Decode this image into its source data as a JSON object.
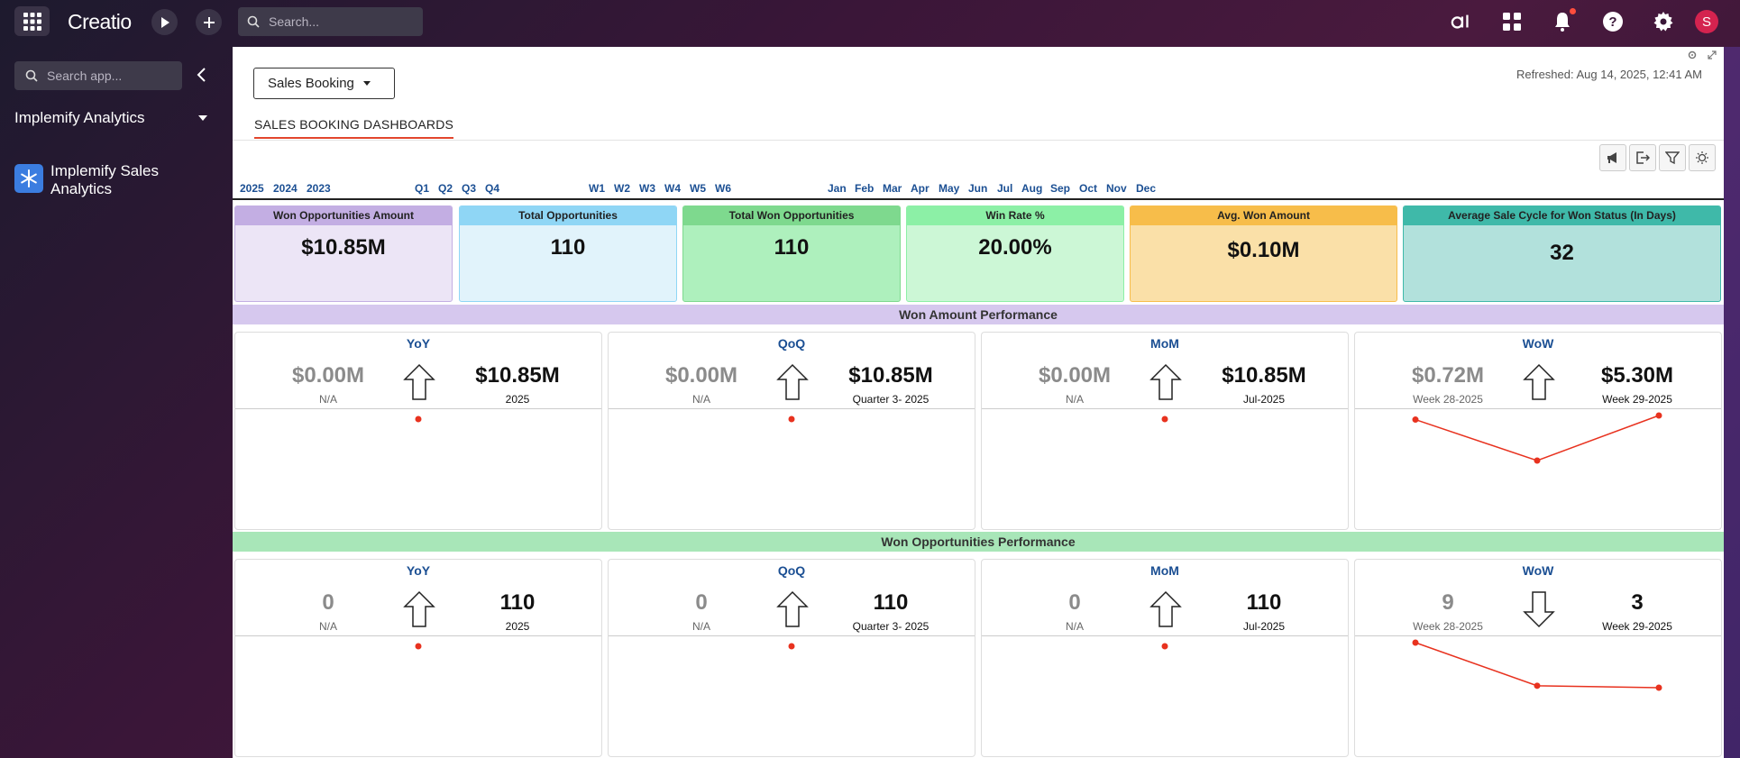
{
  "topbar": {
    "logo": "Creatio",
    "search_placeholder": "Search...",
    "avatar_initial": "S"
  },
  "sidebar": {
    "search_placeholder": "Search app...",
    "workspace": "Implemify Analytics",
    "app_label": "Implemify Sales Analytics"
  },
  "page": {
    "dropdown_label": "Sales Booking",
    "refreshed": "Refreshed: Aug 14, 2025, 12:41 AM",
    "tab": "SALES BOOKING DASHBOARDS"
  },
  "filters": {
    "years": [
      "2025",
      "2024",
      "2023"
    ],
    "quarters": [
      "Q1",
      "Q2",
      "Q3",
      "Q4"
    ],
    "weeks": [
      "W1",
      "W2",
      "W3",
      "W4",
      "W5",
      "W6"
    ],
    "months": [
      "Jan",
      "Feb",
      "Mar",
      "Apr",
      "May",
      "Jun",
      "Jul",
      "Aug",
      "Sep",
      "Oct",
      "Nov",
      "Dec"
    ]
  },
  "kpis": [
    {
      "label": "Won Opportunities Amount",
      "value": "$10.85M",
      "head": "#c3aee3",
      "body": "#ece5f6"
    },
    {
      "label": "Total Opportunities",
      "value": "110",
      "head": "#8fd6f5",
      "body": "#e1f3fb"
    },
    {
      "label": "Total Won Opportunities",
      "value": "110",
      "head": "#7ed98e",
      "body": "#aef0bd"
    },
    {
      "label": "Win Rate %",
      "value": "20.00%",
      "head": "#8cf0a6",
      "body": "#ccf7d6"
    },
    {
      "label": "Avg. Won Amount",
      "value": "$0.10M",
      "head": "#f7bd4a",
      "body": "#fae0a8"
    },
    {
      "label": "Average Sale Cycle for Won Status (In Days)",
      "value": "32",
      "head": "#3fb9a9",
      "body": "#b2e1dc"
    }
  ],
  "sections": {
    "amount_title": "Won Amount Performance",
    "count_title": "Won Opportunities Performance"
  },
  "amount_cards": [
    {
      "title": "YoY",
      "prev": "$0.00M",
      "prev_sub": "N/A",
      "cur": "$10.85M",
      "cur_sub": "2025",
      "trend": "up",
      "points": [
        10.85
      ]
    },
    {
      "title": "QoQ",
      "prev": "$0.00M",
      "prev_sub": "N/A",
      "cur": "$10.85M",
      "cur_sub": "Quarter 3- 2025",
      "trend": "up",
      "points": [
        10.85
      ]
    },
    {
      "title": "MoM",
      "prev": "$0.00M",
      "prev_sub": "N/A",
      "cur": "$10.85M",
      "cur_sub": "Jul-2025",
      "trend": "up",
      "points": [
        10.85
      ]
    },
    {
      "title": "WoW",
      "prev": "$0.72M",
      "prev_sub": "Week 28-2025",
      "cur": "$5.30M",
      "cur_sub": "Week 29-2025",
      "trend": "up",
      "points": [
        5.3,
        3.8,
        5.45
      ]
    }
  ],
  "count_cards": [
    {
      "title": "YoY",
      "prev": "0",
      "prev_sub": "N/A",
      "cur": "110",
      "cur_sub": "2025",
      "trend": "up",
      "points": [
        110
      ]
    },
    {
      "title": "QoQ",
      "prev": "0",
      "prev_sub": "N/A",
      "cur": "110",
      "cur_sub": "Quarter 3- 2025",
      "trend": "up",
      "points": [
        110
      ]
    },
    {
      "title": "MoM",
      "prev": "0",
      "prev_sub": "N/A",
      "cur": "110",
      "cur_sub": "Jul-2025",
      "trend": "up",
      "points": [
        110
      ]
    },
    {
      "title": "WoW",
      "prev": "9",
      "prev_sub": "Week 28-2025",
      "cur": "3",
      "cur_sub": "Week 29-2025",
      "trend": "down",
      "points": [
        50,
        28,
        27
      ]
    }
  ]
}
